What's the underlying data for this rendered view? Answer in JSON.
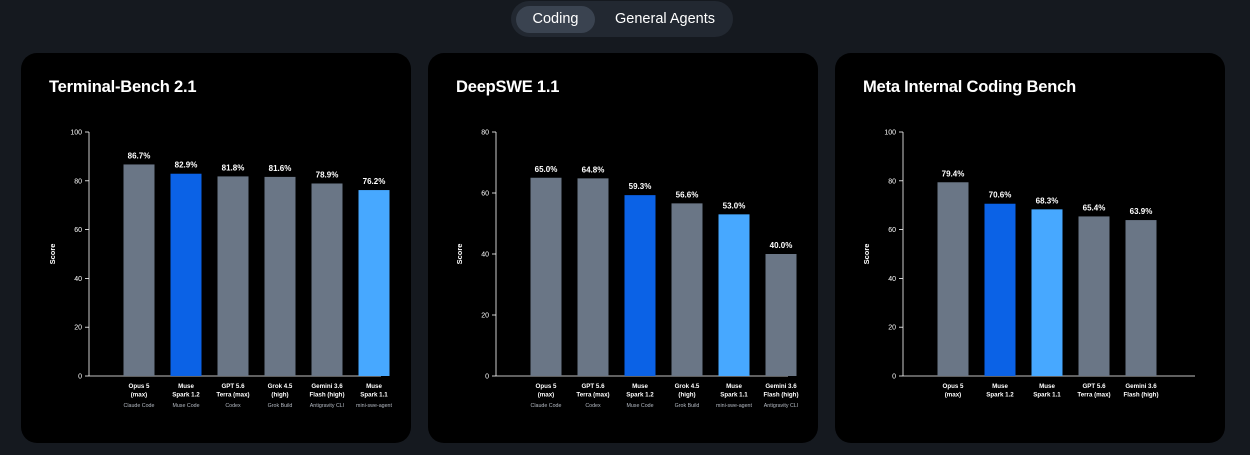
{
  "tabs": [
    "Coding",
    "General Agents"
  ],
  "active_tab": 0,
  "colors": {
    "gray_bar": "#6a7686",
    "dark_blue_bar": "#0b62e6",
    "light_blue_bar": "#47a8ff"
  },
  "chart_data": [
    {
      "type": "bar",
      "title": "Terminal-Bench 2.1",
      "ylabel": "Score",
      "ylim": [
        0,
        100
      ],
      "yticks": [
        0,
        20,
        40,
        60,
        80,
        100
      ],
      "categories": [
        {
          "name": [
            "Opus 5",
            "(max)"
          ],
          "sub": "Claude Code",
          "value": 86.7,
          "label": "86.7%",
          "color": "gray"
        },
        {
          "name": [
            "Muse",
            "Spark 1.2"
          ],
          "sub": "Muse Code",
          "value": 82.9,
          "label": "82.9%",
          "color": "dark_blue"
        },
        {
          "name": [
            "GPT 5.6",
            "Terra (max)"
          ],
          "sub": "Codex",
          "value": 81.8,
          "label": "81.8%",
          "color": "gray"
        },
        {
          "name": [
            "Grok 4.5",
            "(high)"
          ],
          "sub": "Grok Build",
          "value": 81.6,
          "label": "81.6%",
          "color": "gray"
        },
        {
          "name": [
            "Gemini 3.6",
            "Flash (high)"
          ],
          "sub": "Antigravity CLI",
          "value": 78.9,
          "label": "78.9%",
          "color": "gray"
        },
        {
          "name": [
            "Muse",
            "Spark 1.1"
          ],
          "sub": "mini-swe-agent",
          "value": 76.2,
          "label": "76.2%",
          "color": "light_blue"
        }
      ]
    },
    {
      "type": "bar",
      "title": "DeepSWE 1.1",
      "ylabel": "Score",
      "ylim": [
        0,
        80
      ],
      "yticks": [
        0,
        20,
        40,
        60,
        80
      ],
      "categories": [
        {
          "name": [
            "Opus 5",
            "(max)"
          ],
          "sub": "Claude Code",
          "value": 65.0,
          "label": "65.0%",
          "color": "gray"
        },
        {
          "name": [
            "GPT 5.6",
            "Terra (max)"
          ],
          "sub": "Codex",
          "value": 64.8,
          "label": "64.8%",
          "color": "gray"
        },
        {
          "name": [
            "Muse",
            "Spark 1.2"
          ],
          "sub": "Muse Code",
          "value": 59.3,
          "label": "59.3%",
          "color": "dark_blue"
        },
        {
          "name": [
            "Grok 4.5",
            "(high)"
          ],
          "sub": "Grok Build",
          "value": 56.6,
          "label": "56.6%",
          "color": "gray"
        },
        {
          "name": [
            "Muse",
            "Spark 1.1"
          ],
          "sub": "mini-swe-agent",
          "value": 53.0,
          "label": "53.0%",
          "color": "light_blue"
        },
        {
          "name": [
            "Gemini 3.6",
            "Flash (high)"
          ],
          "sub": "Antigravity CLI",
          "value": 40.0,
          "label": "40.0%",
          "color": "gray"
        }
      ]
    },
    {
      "type": "bar",
      "title": "Meta Internal Coding Bench",
      "ylabel": "Score",
      "ylim": [
        0,
        100
      ],
      "yticks": [
        0,
        20,
        40,
        60,
        80,
        100
      ],
      "categories": [
        {
          "name": [
            "Opus 5",
            "(max)"
          ],
          "sub": "",
          "value": 79.4,
          "label": "79.4%",
          "color": "gray"
        },
        {
          "name": [
            "Muse",
            "Spark 1.2"
          ],
          "sub": "",
          "value": 70.6,
          "label": "70.6%",
          "color": "dark_blue"
        },
        {
          "name": [
            "Muse",
            "Spark 1.1"
          ],
          "sub": "",
          "value": 68.3,
          "label": "68.3%",
          "color": "light_blue"
        },
        {
          "name": [
            "GPT 5.6",
            "Terra (max)"
          ],
          "sub": "",
          "value": 65.4,
          "label": "65.4%",
          "color": "gray"
        },
        {
          "name": [
            "Gemini 3.6",
            "Flash (high)"
          ],
          "sub": "",
          "value": 63.9,
          "label": "63.9%",
          "color": "gray"
        }
      ]
    }
  ]
}
